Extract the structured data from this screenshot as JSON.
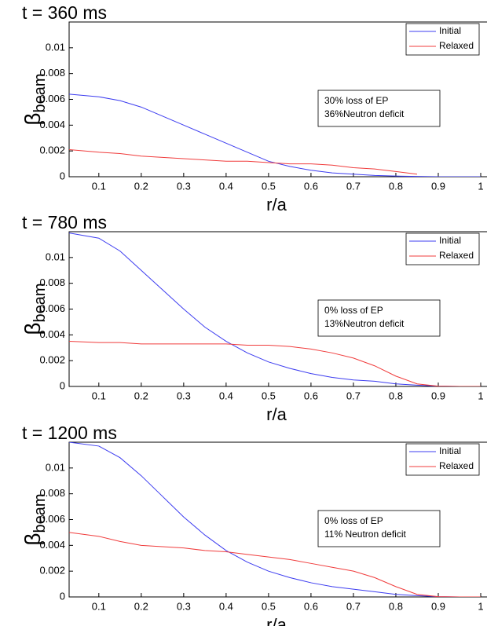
{
  "chart_data": [
    {
      "type": "line",
      "title": "t = 360 ms",
      "xlabel": "r/a",
      "ylabel": "β",
      "ylabel_sub": "beam",
      "annotations": [
        "30% loss of EP",
        "36%Neutron deficit"
      ],
      "legend": "upper right",
      "xlim": [
        0.03,
        1
      ],
      "ylim": [
        0,
        0.012
      ],
      "xticks": [
        0.1,
        0.2,
        0.3,
        0.4,
        0.5,
        0.6,
        0.7,
        0.8,
        0.9,
        1
      ],
      "yticks": [
        0,
        0.002,
        0.004,
        0.006,
        0.008,
        0.01
      ],
      "x": [
        0.03,
        0.1,
        0.15,
        0.2,
        0.25,
        0.3,
        0.35,
        0.4,
        0.45,
        0.5,
        0.55,
        0.6,
        0.65,
        0.7,
        0.75,
        0.8,
        0.85,
        0.9,
        0.95,
        1
      ],
      "series": [
        {
          "name": "Initial",
          "color": "#3c3cf0",
          "values": [
            0.0064,
            0.0062,
            0.0059,
            0.0054,
            0.0047,
            0.004,
            0.0033,
            0.0026,
            0.0019,
            0.0012,
            0.0008,
            0.0005,
            0.0003,
            0.0002,
            0.0001,
            5e-05,
            2e-05,
            0,
            0,
            0
          ]
        },
        {
          "name": "Relaxed",
          "color": "#f03c3c",
          "values": [
            0.0021,
            0.0019,
            0.0018,
            0.0016,
            0.0015,
            0.0014,
            0.0013,
            0.0012,
            0.0012,
            0.0011,
            0.001,
            0.001,
            0.0009,
            0.0007,
            0.0006,
            0.0004,
            0.0002,
            null,
            null,
            null
          ]
        }
      ]
    },
    {
      "type": "line",
      "title": "t = 780 ms",
      "xlabel": "r/a",
      "ylabel": "β",
      "ylabel_sub": "beam",
      "annotations": [
        "0% loss of EP",
        "13%Neutron deficit"
      ],
      "legend": "upper right",
      "xlim": [
        0.03,
        1
      ],
      "ylim": [
        0,
        0.012
      ],
      "xticks": [
        0.1,
        0.2,
        0.3,
        0.4,
        0.5,
        0.6,
        0.7,
        0.8,
        0.9,
        1
      ],
      "yticks": [
        0,
        0.002,
        0.004,
        0.006,
        0.008,
        0.01
      ],
      "x": [
        0.03,
        0.1,
        0.15,
        0.2,
        0.25,
        0.3,
        0.35,
        0.4,
        0.45,
        0.5,
        0.55,
        0.6,
        0.65,
        0.7,
        0.75,
        0.8,
        0.85,
        0.9,
        0.95,
        1
      ],
      "series": [
        {
          "name": "Initial",
          "color": "#3c3cf0",
          "values": [
            0.0119,
            0.0115,
            0.0105,
            0.009,
            0.0075,
            0.006,
            0.0046,
            0.0035,
            0.0026,
            0.0019,
            0.0014,
            0.001,
            0.0007,
            0.0005,
            0.0004,
            0.0002,
            0.0001,
            2e-05,
            0,
            0
          ]
        },
        {
          "name": "Relaxed",
          "color": "#f03c3c",
          "values": [
            0.0035,
            0.0034,
            0.0034,
            0.0033,
            0.0033,
            0.0033,
            0.0033,
            0.0033,
            0.0032,
            0.0032,
            0.0031,
            0.0029,
            0.0026,
            0.0022,
            0.0016,
            0.0008,
            0.0002,
            2e-05,
            0,
            0
          ]
        }
      ]
    },
    {
      "type": "line",
      "title": "t = 1200 ms",
      "xlabel": "r/a",
      "ylabel": "β",
      "ylabel_sub": "beam",
      "annotations": [
        "0% loss of EP",
        "11% Neutron deficit"
      ],
      "legend": "upper right",
      "xlim": [
        0.03,
        1
      ],
      "ylim": [
        0,
        0.012
      ],
      "xticks": [
        0.1,
        0.2,
        0.3,
        0.4,
        0.5,
        0.6,
        0.7,
        0.8,
        0.9,
        1
      ],
      "yticks": [
        0,
        0.002,
        0.004,
        0.006,
        0.008,
        0.01
      ],
      "x": [
        0.03,
        0.1,
        0.15,
        0.2,
        0.25,
        0.3,
        0.35,
        0.4,
        0.45,
        0.5,
        0.55,
        0.6,
        0.65,
        0.7,
        0.75,
        0.8,
        0.85,
        0.9,
        0.95,
        1
      ],
      "series": [
        {
          "name": "Initial",
          "color": "#3c3cf0",
          "values": [
            0.012,
            0.0117,
            0.0108,
            0.0094,
            0.0078,
            0.0062,
            0.0048,
            0.0036,
            0.0027,
            0.002,
            0.0015,
            0.0011,
            0.0008,
            0.0006,
            0.0004,
            0.0002,
            0.0001,
            2e-05,
            0,
            0
          ]
        },
        {
          "name": "Relaxed",
          "color": "#f03c3c",
          "values": [
            0.005,
            0.0047,
            0.0043,
            0.004,
            0.0039,
            0.0038,
            0.0036,
            0.0035,
            0.0033,
            0.0031,
            0.0029,
            0.0026,
            0.0023,
            0.002,
            0.0015,
            0.0008,
            0.0002,
            2e-05,
            0,
            0
          ]
        }
      ]
    }
  ]
}
